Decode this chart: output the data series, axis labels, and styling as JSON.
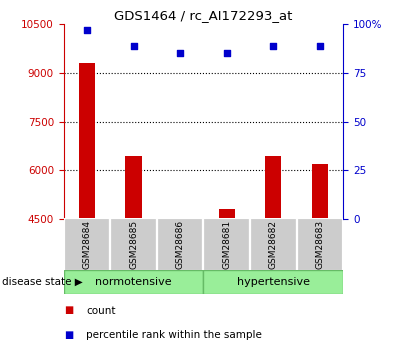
{
  "title": "GDS1464 / rc_AI172293_at",
  "samples": [
    "GSM28684",
    "GSM28685",
    "GSM28686",
    "GSM28681",
    "GSM28682",
    "GSM28683"
  ],
  "counts": [
    9300,
    6450,
    4530,
    4800,
    6450,
    6200
  ],
  "percentiles": [
    97,
    89,
    85,
    85,
    89,
    89
  ],
  "ylim_left": [
    4500,
    10500
  ],
  "ylim_right": [
    0,
    100
  ],
  "yticks_left": [
    4500,
    6000,
    7500,
    9000,
    10500
  ],
  "yticks_right": [
    0,
    25,
    50,
    75,
    100
  ],
  "ytick_labels_right": [
    "0",
    "25",
    "50",
    "75",
    "100%"
  ],
  "grid_lines": [
    6000,
    7500,
    9000
  ],
  "bar_color": "#cc0000",
  "dot_color": "#0000cc",
  "group1_label": "normotensive",
  "group2_label": "hypertensive",
  "group1_indices": [
    0,
    1,
    2
  ],
  "group2_indices": [
    3,
    4,
    5
  ],
  "group_bg_color": "#99ee99",
  "sample_bg_color": "#cccccc",
  "legend_count_label": "count",
  "legend_pct_label": "percentile rank within the sample",
  "disease_state_label": "disease state",
  "title_color": "#000000",
  "left_axis_color": "#cc0000",
  "right_axis_color": "#0000cc",
  "bar_width": 0.35
}
